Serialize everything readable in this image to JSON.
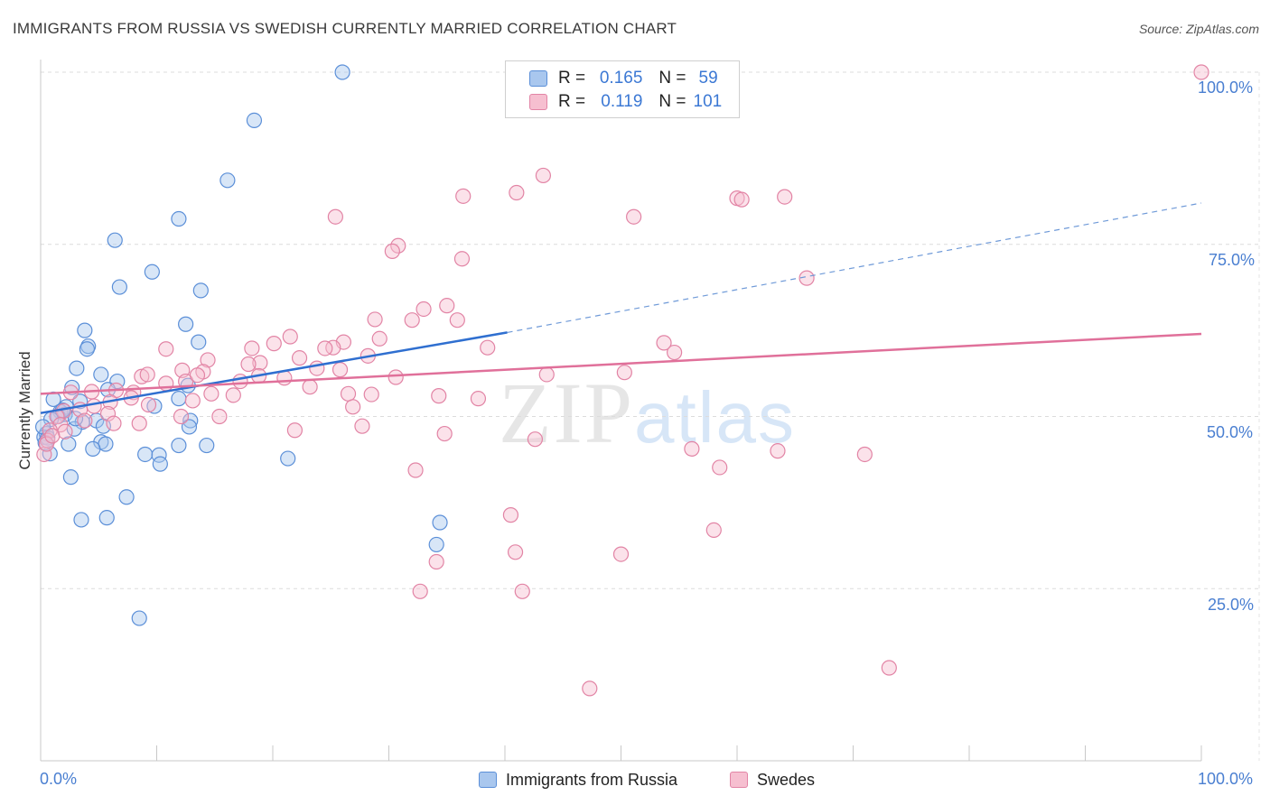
{
  "header": {
    "title": "IMMIGRANTS FROM RUSSIA VS SWEDISH CURRENTLY MARRIED CORRELATION CHART",
    "source": "Source: ZipAtlas.com"
  },
  "watermark": {
    "zip": "ZIP",
    "atlas": "atlas"
  },
  "legend": {
    "rows": [
      {
        "r_label": "R =",
        "r_value": "0.165",
        "n_label": "N =",
        "n_value": "59",
        "color": "#a9c7ee",
        "border": "#5b8fd8"
      },
      {
        "r_label": "R =",
        "r_value": "0.119",
        "n_label": "N =",
        "n_value": "101",
        "color": "#f6bfd0",
        "border": "#e284a5"
      }
    ]
  },
  "bottom_legend": {
    "items": [
      {
        "label": "Immigrants from Russia",
        "color": "#a9c7ee",
        "border": "#5b8fd8"
      },
      {
        "label": "Swedes",
        "color": "#f6bfd0",
        "border": "#e284a5"
      }
    ]
  },
  "axes": {
    "ylabel": "Currently Married",
    "x_tick_left": "0.0%",
    "x_tick_right": "100.0%",
    "y_ticks": [
      "100.0%",
      "75.0%",
      "50.0%",
      "25.0%"
    ]
  },
  "chart_data": {
    "type": "scatter",
    "title": "IMMIGRANTS FROM RUSSIA VS SWEDISH CURRENTLY MARRIED CORRELATION CHART",
    "xlabel": "",
    "ylabel": "Currently Married",
    "xlim": [
      0,
      100
    ],
    "ylim": [
      0,
      100
    ],
    "grid": true,
    "legend_position": "top-center",
    "series": [
      {
        "name": "Immigrants from Russia",
        "color": "#a9c7ee",
        "stroke": "#5b8fd8",
        "trend": {
          "x0": 0,
          "y0": 50.5,
          "x1": 40.2,
          "y1": 62.2,
          "dashed_to_x": 100,
          "dashed_to_y": 81.0,
          "color": "#2f6fd0"
        },
        "points": [
          [
            26,
            100
          ],
          [
            18.4,
            93
          ],
          [
            16.1,
            84.3
          ],
          [
            11.9,
            78.7
          ],
          [
            6.4,
            75.6
          ],
          [
            9.6,
            71
          ],
          [
            6.8,
            68.8
          ],
          [
            13.8,
            68.3
          ],
          [
            12.5,
            63.4
          ],
          [
            3.8,
            62.5
          ],
          [
            4.1,
            60.2
          ],
          [
            4,
            59.8
          ],
          [
            13.6,
            60.8
          ],
          [
            3.1,
            57
          ],
          [
            5.2,
            56.1
          ],
          [
            6.6,
            55.1
          ],
          [
            5.8,
            53.9
          ],
          [
            2.7,
            54.2
          ],
          [
            12.7,
            54.5
          ],
          [
            1.1,
            52.5
          ],
          [
            3.4,
            52.2
          ],
          [
            2.2,
            51.4
          ],
          [
            11.9,
            52.6
          ],
          [
            9.8,
            51.5
          ],
          [
            1.7,
            50.7
          ],
          [
            2.1,
            50.3
          ],
          [
            1.5,
            50
          ],
          [
            0.9,
            49.6
          ],
          [
            4.8,
            49.4
          ],
          [
            3.6,
            49.2
          ],
          [
            12.9,
            49.4
          ],
          [
            2.9,
            48.2
          ],
          [
            12.8,
            48.5
          ],
          [
            5.4,
            48.6
          ],
          [
            0.5,
            47.5
          ],
          [
            0.3,
            47.0
          ],
          [
            0.6,
            46.9
          ],
          [
            2.4,
            46.0
          ],
          [
            5.2,
            46.3
          ],
          [
            5.6,
            46.0
          ],
          [
            4.5,
            45.3
          ],
          [
            11.9,
            45.8
          ],
          [
            14.3,
            45.8
          ],
          [
            0.8,
            44.6
          ],
          [
            9.0,
            44.5
          ],
          [
            10.2,
            44.4
          ],
          [
            10.3,
            43.1
          ],
          [
            21.3,
            43.9
          ],
          [
            2.6,
            41.2
          ],
          [
            7.4,
            38.3
          ],
          [
            3.5,
            35.0
          ],
          [
            5.7,
            35.3
          ],
          [
            34.4,
            34.6
          ],
          [
            34.1,
            31.4
          ],
          [
            8.5,
            20.7
          ],
          [
            0.2,
            48.5
          ],
          [
            1.9,
            50.9
          ],
          [
            0.4,
            46.2
          ],
          [
            3.0,
            49.7
          ]
        ]
      },
      {
        "name": "Swedes",
        "color": "#f6bfd0",
        "stroke": "#e284a5",
        "trend": {
          "x0": 0,
          "y0": 53.3,
          "x1": 100,
          "y1": 62.0,
          "color": "#e0709a"
        },
        "points": [
          [
            100,
            100
          ],
          [
            46.5,
            99.8
          ],
          [
            43.3,
            85
          ],
          [
            41.0,
            82.5
          ],
          [
            36.4,
            82
          ],
          [
            60,
            81.7
          ],
          [
            60.4,
            81.5
          ],
          [
            64.1,
            81.9
          ],
          [
            51.1,
            79
          ],
          [
            25.4,
            79
          ],
          [
            30.8,
            74.8
          ],
          [
            30.3,
            74.0
          ],
          [
            36.3,
            72.9
          ],
          [
            66.0,
            70.1
          ],
          [
            33.0,
            65.6
          ],
          [
            35.0,
            66.1
          ],
          [
            28.8,
            64.1
          ],
          [
            32.0,
            64.0
          ],
          [
            35.9,
            64.0
          ],
          [
            21.5,
            61.6
          ],
          [
            29.2,
            61.3
          ],
          [
            26.1,
            60.8
          ],
          [
            20.1,
            60.6
          ],
          [
            25.2,
            60.0
          ],
          [
            24.5,
            59.9
          ],
          [
            18.2,
            59.9
          ],
          [
            53.7,
            60.7
          ],
          [
            54.6,
            59.3
          ],
          [
            38.5,
            60.0
          ],
          [
            10.8,
            59.8
          ],
          [
            28.2,
            58.8
          ],
          [
            14.4,
            58.2
          ],
          [
            18.9,
            57.8
          ],
          [
            17.9,
            57.6
          ],
          [
            22.3,
            58.5
          ],
          [
            23.8,
            57.0
          ],
          [
            25.8,
            56.8
          ],
          [
            14.0,
            56.5
          ],
          [
            12.2,
            56.7
          ],
          [
            8.7,
            55.8
          ],
          [
            9.2,
            56.1
          ],
          [
            18.8,
            55.9
          ],
          [
            21.0,
            55.6
          ],
          [
            30.6,
            55.7
          ],
          [
            43.6,
            56.1
          ],
          [
            50.3,
            56.4
          ],
          [
            12.5,
            55.1
          ],
          [
            13.5,
            56.0
          ],
          [
            17.2,
            55.1
          ],
          [
            10.8,
            54.8
          ],
          [
            23.2,
            54.3
          ],
          [
            6.5,
            53.8
          ],
          [
            8.0,
            53.5
          ],
          [
            14.7,
            53.3
          ],
          [
            26.5,
            53.3
          ],
          [
            28.5,
            53.2
          ],
          [
            4.4,
            53.6
          ],
          [
            2.6,
            53.5
          ],
          [
            16.6,
            53.1
          ],
          [
            7.8,
            52.7
          ],
          [
            13.1,
            52.3
          ],
          [
            6.0,
            52.1
          ],
          [
            34.3,
            53.0
          ],
          [
            37.7,
            52.6
          ],
          [
            9.3,
            51.7
          ],
          [
            4.6,
            51.5
          ],
          [
            26.9,
            51.4
          ],
          [
            3.4,
            51.0
          ],
          [
            2.0,
            50.8
          ],
          [
            5.8,
            50.4
          ],
          [
            1.4,
            50.0
          ],
          [
            12.1,
            50.0
          ],
          [
            15.4,
            50.0
          ],
          [
            3.8,
            49.4
          ],
          [
            6.3,
            49.0
          ],
          [
            8.5,
            49.0
          ],
          [
            1.7,
            48.8
          ],
          [
            27.7,
            48.6
          ],
          [
            0.8,
            48.0
          ],
          [
            2.1,
            47.8
          ],
          [
            21.9,
            48.0
          ],
          [
            34.8,
            47.5
          ],
          [
            42.6,
            46.7
          ],
          [
            0.6,
            46.5
          ],
          [
            56.1,
            45.3
          ],
          [
            63.5,
            45.0
          ],
          [
            71.0,
            44.5
          ],
          [
            58.5,
            42.6
          ],
          [
            32.3,
            42.2
          ],
          [
            40.5,
            35.7
          ],
          [
            58.0,
            33.5
          ],
          [
            40.9,
            30.3
          ],
          [
            50.0,
            30.0
          ],
          [
            34.1,
            28.9
          ],
          [
            32.7,
            24.6
          ],
          [
            41.5,
            24.6
          ],
          [
            73.1,
            13.5
          ],
          [
            47.3,
            10.5
          ],
          [
            0.3,
            44.5
          ],
          [
            0.5,
            46.0
          ],
          [
            1.0,
            47.2
          ]
        ]
      }
    ]
  }
}
